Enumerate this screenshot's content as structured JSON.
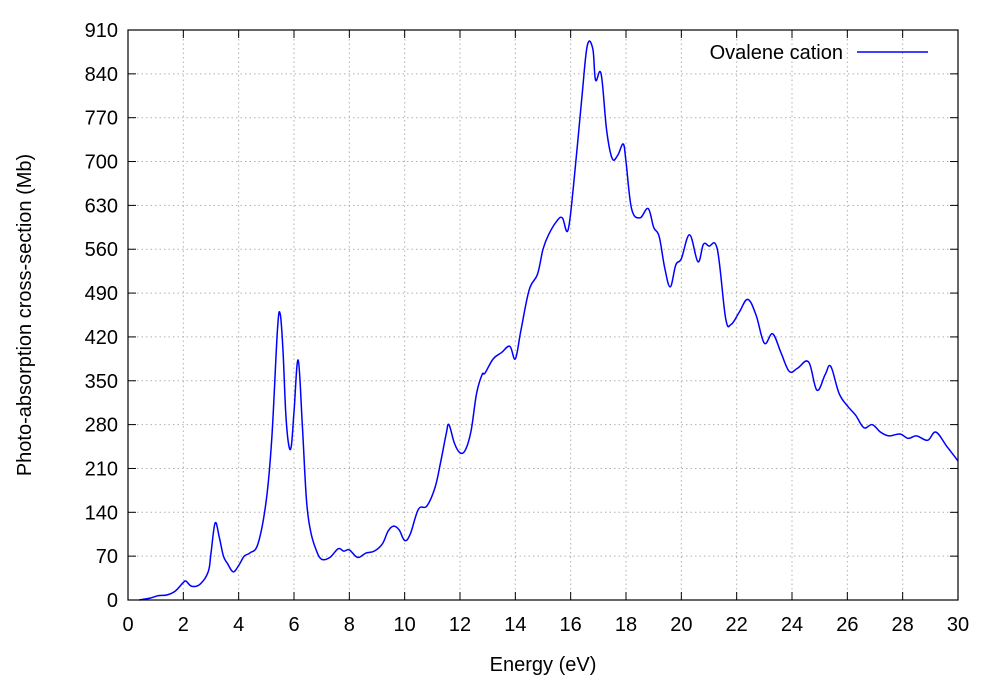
{
  "chart_data": {
    "type": "line",
    "title": "",
    "xlabel": "Energy (eV)",
    "ylabel": "Photo-absorption cross-section (Mb)",
    "xlim": [
      0,
      30
    ],
    "ylim": [
      0,
      910
    ],
    "xticks": [
      0,
      2,
      4,
      6,
      8,
      10,
      12,
      14,
      16,
      18,
      20,
      22,
      24,
      26,
      28,
      30
    ],
    "yticks": [
      0,
      70,
      140,
      210,
      280,
      350,
      420,
      490,
      560,
      630,
      700,
      770,
      840,
      910
    ],
    "grid": true,
    "legend_position": "top-right",
    "series": [
      {
        "name": "Ovalene cation",
        "color": "#0000ff",
        "x": [
          0.4,
          0.8,
          1.1,
          1.4,
          1.7,
          2.0,
          2.1,
          2.3,
          2.6,
          2.9,
          3.0,
          3.15,
          3.3,
          3.45,
          3.6,
          3.8,
          4.0,
          4.2,
          4.4,
          4.7,
          5.0,
          5.2,
          5.4,
          5.5,
          5.6,
          5.7,
          5.8,
          5.9,
          6.0,
          6.15,
          6.3,
          6.45,
          6.6,
          6.8,
          7.0,
          7.3,
          7.6,
          7.8,
          8.0,
          8.3,
          8.6,
          8.9,
          9.2,
          9.4,
          9.6,
          9.8,
          10.0,
          10.2,
          10.5,
          10.8,
          11.1,
          11.3,
          11.5,
          11.6,
          11.8,
          12.0,
          12.2,
          12.4,
          12.6,
          12.8,
          12.9,
          13.2,
          13.5,
          13.8,
          14.0,
          14.2,
          14.5,
          14.8,
          15.0,
          15.2,
          15.5,
          15.7,
          15.9,
          16.1,
          16.4,
          16.6,
          16.8,
          16.9,
          17.1,
          17.3,
          17.5,
          17.7,
          17.9,
          18.0,
          18.2,
          18.5,
          18.8,
          19.0,
          19.2,
          19.4,
          19.6,
          19.8,
          20.0,
          20.3,
          20.6,
          20.8,
          21.0,
          21.3,
          21.6,
          21.8,
          22.1,
          22.4,
          22.7,
          23.0,
          23.3,
          23.6,
          23.9,
          24.2,
          24.6,
          24.9,
          25.2,
          25.4,
          25.7,
          26.0,
          26.3,
          26.6,
          26.9,
          27.2,
          27.5,
          27.9,
          28.2,
          28.5,
          28.9,
          29.2,
          29.6,
          30.0
        ],
        "y": [
          0,
          3,
          7,
          8,
          14,
          28,
          30,
          22,
          25,
          45,
          75,
          123,
          100,
          70,
          58,
          45,
          55,
          70,
          75,
          90,
          160,
          260,
          430,
          457,
          400,
          300,
          250,
          245,
          300,
          383,
          280,
          160,
          110,
          80,
          65,
          68,
          82,
          78,
          80,
          68,
          75,
          78,
          90,
          110,
          118,
          112,
          95,
          105,
          145,
          150,
          180,
          220,
          265,
          280,
          250,
          235,
          240,
          270,
          330,
          360,
          362,
          385,
          395,
          405,
          385,
          430,
          495,
          520,
          560,
          583,
          605,
          610,
          590,
          660,
          800,
          885,
          880,
          830,
          840,
          750,
          705,
          710,
          728,
          700,
          625,
          610,
          625,
          595,
          580,
          530,
          500,
          535,
          545,
          583,
          540,
          568,
          565,
          560,
          450,
          440,
          460,
          480,
          455,
          410,
          425,
          395,
          365,
          370,
          380,
          335,
          360,
          373,
          330,
          310,
          295,
          275,
          280,
          268,
          262,
          265,
          258,
          262,
          255,
          268,
          245,
          222
        ]
      }
    ]
  }
}
